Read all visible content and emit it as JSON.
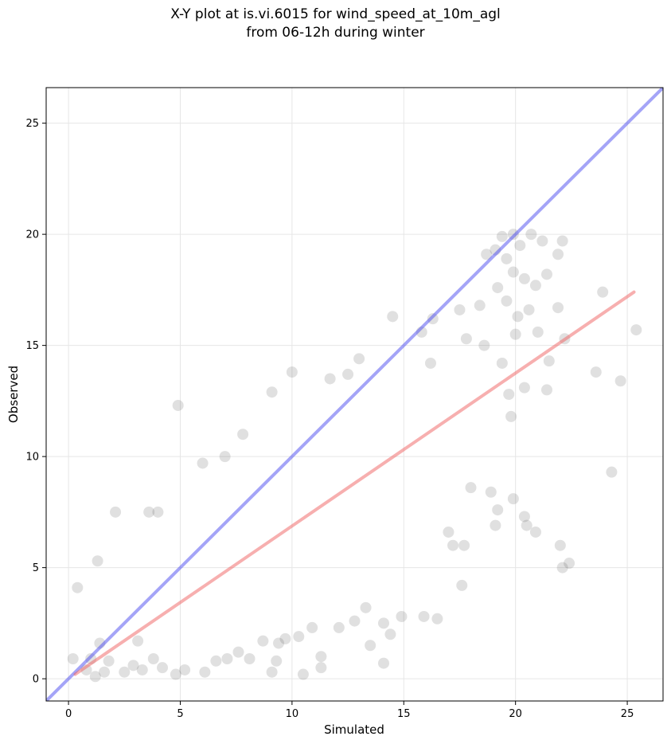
{
  "chart_data": {
    "type": "scatter",
    "title": "X-Y plot at is.vi.6015 for wind_speed_at_10m_agl",
    "subtitle": "from 06-12h during winter",
    "xlabel": "Simulated",
    "ylabel": "Observed",
    "xlim": [
      -1,
      26.6
    ],
    "ylim": [
      -1,
      26.6
    ],
    "xticks": [
      0,
      5,
      10,
      15,
      20,
      25
    ],
    "yticks": [
      0,
      5,
      10,
      15,
      20,
      25
    ],
    "grid": true,
    "colors": {
      "points": "#404040",
      "identity_line": "#4a4af0",
      "fit_line": "#f06060",
      "grid": "#e6e6e6"
    },
    "lines": [
      {
        "kind": "identity",
        "x": [
          -1,
          26.6
        ],
        "y": [
          -1,
          26.6
        ]
      },
      {
        "kind": "fit",
        "x": [
          0.3,
          25.3
        ],
        "y": [
          0.2,
          17.4
        ]
      }
    ],
    "points": [
      [
        0.4,
        4.1
      ],
      [
        1.3,
        5.3
      ],
      [
        2.1,
        7.5
      ],
      [
        3.6,
        7.5
      ],
      [
        4.0,
        7.5
      ],
      [
        4.9,
        12.3
      ],
      [
        6.0,
        9.7
      ],
      [
        7.0,
        10.0
      ],
      [
        7.8,
        11.0
      ],
      [
        9.1,
        12.9
      ],
      [
        10.0,
        13.8
      ],
      [
        11.7,
        13.5
      ],
      [
        12.5,
        13.7
      ],
      [
        13.0,
        14.4
      ],
      [
        14.5,
        16.3
      ],
      [
        15.8,
        15.6
      ],
      [
        16.3,
        16.2
      ],
      [
        16.2,
        14.2
      ],
      [
        17.5,
        16.6
      ],
      [
        17.8,
        15.3
      ],
      [
        18.4,
        16.8
      ],
      [
        18.7,
        19.1
      ],
      [
        19.1,
        19.3
      ],
      [
        19.4,
        19.9
      ],
      [
        19.9,
        20.0
      ],
      [
        20.2,
        19.5
      ],
      [
        20.7,
        20.0
      ],
      [
        21.2,
        19.7
      ],
      [
        21.9,
        19.1
      ],
      [
        22.1,
        19.7
      ],
      [
        19.6,
        18.9
      ],
      [
        19.9,
        18.3
      ],
      [
        20.4,
        18.0
      ],
      [
        20.9,
        17.7
      ],
      [
        21.4,
        18.2
      ],
      [
        19.2,
        17.6
      ],
      [
        19.6,
        17.0
      ],
      [
        20.6,
        16.6
      ],
      [
        20.0,
        15.5
      ],
      [
        19.4,
        14.2
      ],
      [
        18.6,
        15.0
      ],
      [
        19.7,
        12.8
      ],
      [
        21.4,
        13.0
      ],
      [
        19.8,
        11.8
      ],
      [
        20.4,
        13.1
      ],
      [
        21.5,
        14.3
      ],
      [
        22.2,
        15.3
      ],
      [
        21.9,
        16.7
      ],
      [
        21.0,
        15.6
      ],
      [
        20.1,
        16.3
      ],
      [
        25.4,
        15.7
      ],
      [
        23.6,
        13.8
      ],
      [
        23.9,
        17.4
      ],
      [
        24.7,
        13.4
      ],
      [
        24.3,
        9.3
      ],
      [
        22.0,
        6.0
      ],
      [
        22.1,
        5.0
      ],
      [
        22.4,
        5.2
      ],
      [
        20.4,
        7.3
      ],
      [
        20.5,
        6.9
      ],
      [
        20.9,
        6.6
      ],
      [
        19.9,
        8.1
      ],
      [
        19.1,
        6.9
      ],
      [
        19.2,
        7.6
      ],
      [
        18.9,
        8.4
      ],
      [
        18.0,
        8.6
      ],
      [
        17.7,
        6.0
      ],
      [
        17.2,
        6.0
      ],
      [
        17.0,
        6.6
      ],
      [
        17.6,
        4.2
      ],
      [
        16.5,
        2.7
      ],
      [
        15.9,
        2.8
      ],
      [
        14.1,
        0.7
      ],
      [
        14.4,
        2.0
      ],
      [
        14.1,
        2.5
      ],
      [
        13.5,
        1.5
      ],
      [
        11.3,
        1.0
      ],
      [
        10.5,
        0.2
      ],
      [
        11.3,
        0.5
      ],
      [
        9.3,
        0.8
      ],
      [
        9.1,
        0.3
      ],
      [
        0.2,
        0.9
      ],
      [
        0.8,
        0.4
      ],
      [
        1.0,
        0.9
      ],
      [
        1.2,
        0.1
      ],
      [
        1.6,
        0.3
      ],
      [
        1.4,
        1.6
      ],
      [
        1.8,
        0.8
      ],
      [
        2.5,
        0.3
      ],
      [
        2.9,
        0.6
      ],
      [
        3.1,
        1.7
      ],
      [
        3.3,
        0.4
      ],
      [
        3.8,
        0.9
      ],
      [
        4.2,
        0.5
      ],
      [
        4.8,
        0.2
      ],
      [
        5.2,
        0.4
      ],
      [
        6.1,
        0.3
      ],
      [
        6.6,
        0.8
      ],
      [
        7.1,
        0.9
      ],
      [
        7.6,
        1.2
      ],
      [
        8.1,
        0.9
      ],
      [
        8.7,
        1.7
      ],
      [
        9.4,
        1.6
      ],
      [
        9.7,
        1.8
      ],
      [
        10.3,
        1.9
      ],
      [
        10.9,
        2.3
      ],
      [
        12.1,
        2.3
      ],
      [
        12.8,
        2.6
      ],
      [
        13.3,
        3.2
      ],
      [
        14.9,
        2.8
      ]
    ]
  }
}
